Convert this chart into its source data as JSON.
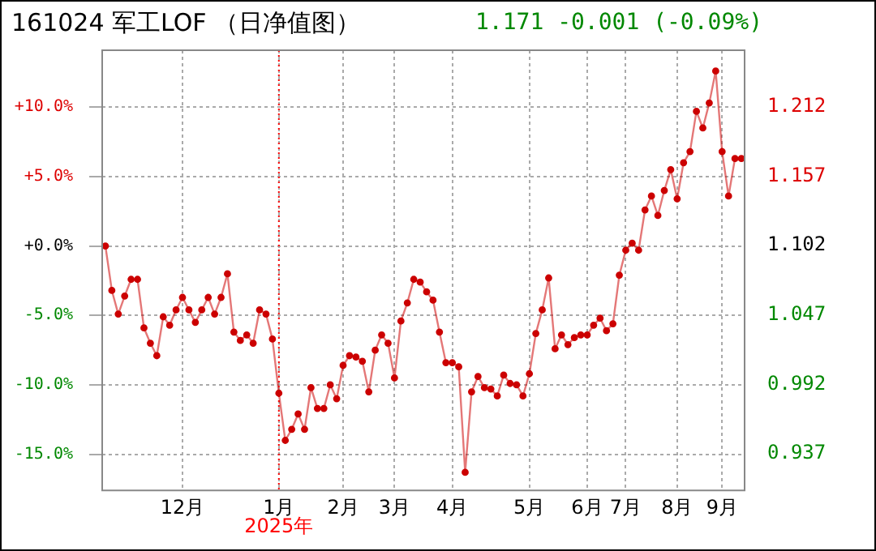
{
  "chart_data": {
    "type": "line",
    "title": "161024 军工LOF （日净值图）",
    "subtitle": "1.171 -0.001 (-0.09%)",
    "categories": [
      null,
      null,
      null,
      null,
      null,
      null,
      null,
      null,
      null,
      null,
      null,
      null,
      "12月",
      null,
      null,
      null,
      null,
      null,
      null,
      null,
      null,
      null,
      null,
      null,
      null,
      null,
      null,
      "1月",
      null,
      null,
      null,
      null,
      null,
      null,
      null,
      null,
      null,
      "2月",
      null,
      null,
      null,
      null,
      null,
      null,
      null,
      "3月",
      null,
      null,
      null,
      null,
      null,
      null,
      null,
      null,
      "4月",
      null,
      null,
      null,
      null,
      null,
      null,
      null,
      null,
      null,
      null,
      null,
      "5月",
      null,
      null,
      null,
      null,
      null,
      null,
      null,
      null,
      "6月",
      null,
      null,
      null,
      null,
      null,
      "7月",
      null,
      null,
      null,
      null,
      null,
      null,
      null,
      "8月",
      null,
      null,
      null,
      null,
      null,
      null,
      "9月",
      null,
      null,
      null
    ],
    "series": [
      {
        "color": "#cc0000",
        "values": [
          0.0,
          -3.2,
          -4.9,
          -3.6,
          -2.4,
          -2.4,
          -5.9,
          -7.0,
          -7.9,
          -5.1,
          -5.7,
          -4.6,
          -3.7,
          -4.6,
          -5.5,
          -4.6,
          -3.7,
          -4.9,
          -3.7,
          -2.0,
          -6.2,
          -6.8,
          -6.4,
          -7.0,
          -4.6,
          -4.9,
          -6.7,
          -10.6,
          -14.0,
          -13.2,
          -12.1,
          -13.2,
          -10.2,
          -11.7,
          -11.7,
          -10.0,
          -11.0,
          -8.6,
          -7.9,
          -8.0,
          -8.3,
          -10.5,
          -7.5,
          -6.4,
          -7.0,
          -9.5,
          -5.4,
          -4.1,
          -2.4,
          -2.6,
          -3.3,
          -3.9,
          -6.2,
          -8.4,
          -8.4,
          -8.7,
          -16.3,
          -10.5,
          -9.4,
          -10.2,
          -10.3,
          -10.8,
          -9.3,
          -9.9,
          -10.0,
          -10.8,
          -9.2,
          -6.3,
          -4.6,
          -2.3,
          -7.4,
          -6.4,
          -7.1,
          -6.6,
          -6.4,
          -6.4,
          -5.7,
          -5.2,
          -6.1,
          -5.6,
          -2.1,
          -0.3,
          0.2,
          -0.3,
          2.6,
          3.6,
          2.2,
          4.0,
          5.5,
          3.4,
          6.0,
          6.8,
          9.7,
          8.5,
          10.3,
          12.6,
          6.8,
          3.6,
          6.3,
          6.3
        ]
      }
    ],
    "ylim": [
      -17.6,
      14.1
    ],
    "yticks": [
      {
        "value": -15,
        "label": "-15.0%"
      },
      {
        "value": -10,
        "label": "-10.0%"
      },
      {
        "value": -5,
        "label": "-5.0%"
      },
      {
        "value": 0,
        "label": "+0.0%"
      },
      {
        "value": 5,
        "label": "+5.0%"
      },
      {
        "value": 10,
        "label": "+10.0%"
      }
    ],
    "y2lim": [
      0.908,
      1.257
    ],
    "y2ticks": [
      0.937,
      0.992,
      1.047,
      1.102,
      1.157,
      1.212
    ],
    "ref_lines": [
      {
        "axis": "x",
        "value": "1月",
        "label": "2025年",
        "color": "#ff0000",
        "line_style": "dotted"
      }
    ],
    "grid": true,
    "legend": false,
    "marker": "circle",
    "line_style": "solid"
  }
}
